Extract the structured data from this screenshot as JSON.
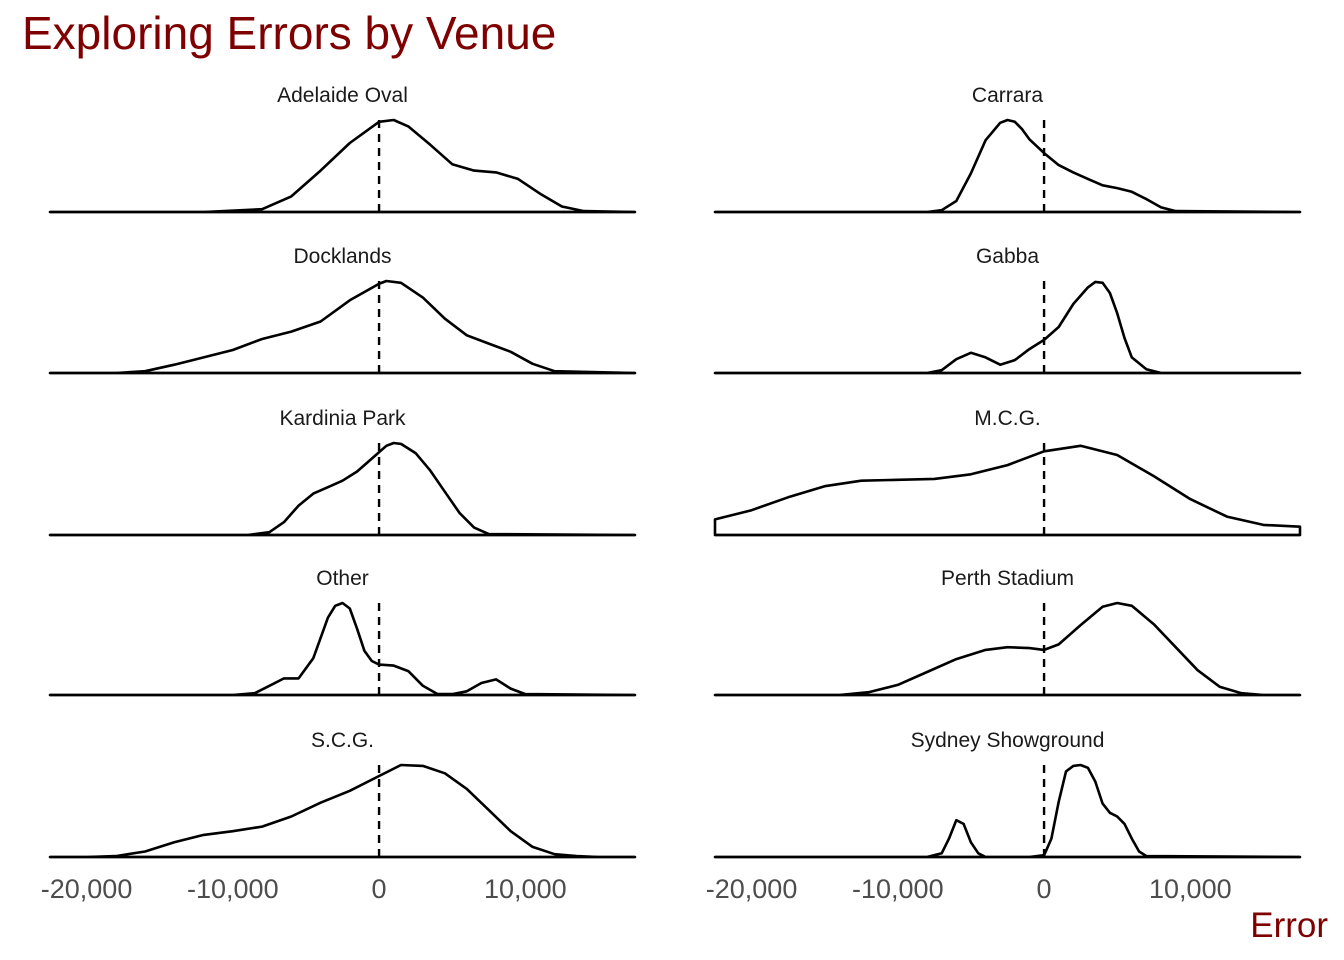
{
  "chart_data": {
    "type": "area",
    "title": "Exploring Errors by Venue",
    "xlabel": "Error",
    "ylabel": "",
    "xlim": [
      -22500,
      17500
    ],
    "x_ticks": [
      -20000,
      -10000,
      0,
      10000
    ],
    "x_tick_labels": [
      "-20,000",
      "-10,000",
      "0",
      "10,000"
    ],
    "reference_line": {
      "x": 0,
      "style": "dashed"
    },
    "grid": false,
    "legend": "none",
    "line_color": "#000000",
    "title_color": "#7f0000",
    "panels": [
      {
        "name": "Adelaide Oval",
        "x": [
          -22500,
          -12000,
          -8000,
          -6000,
          -4000,
          -2000,
          0,
          1000,
          2000,
          3500,
          5000,
          6500,
          8000,
          9500,
          11000,
          12500,
          14000,
          17500
        ],
        "y": [
          0,
          0,
          0.03,
          0.17,
          0.45,
          0.75,
          0.98,
          1.0,
          0.93,
          0.73,
          0.52,
          0.45,
          0.43,
          0.36,
          0.2,
          0.06,
          0.01,
          0
        ]
      },
      {
        "name": "Carrara",
        "x": [
          -22500,
          -8000,
          -7000,
          -6000,
          -5000,
          -4000,
          -3000,
          -2500,
          -2000,
          -1500,
          -1000,
          0,
          1000,
          2000,
          3000,
          4000,
          5000,
          6000,
          7000,
          8000,
          9000,
          17500
        ],
        "y": [
          0,
          0,
          0.02,
          0.12,
          0.42,
          0.78,
          0.97,
          1.0,
          0.98,
          0.9,
          0.79,
          0.64,
          0.51,
          0.43,
          0.36,
          0.29,
          0.26,
          0.22,
          0.14,
          0.05,
          0.01,
          0
        ]
      },
      {
        "name": "Docklands",
        "x": [
          -22500,
          -18000,
          -16000,
          -14000,
          -12000,
          -10000,
          -8000,
          -6000,
          -4000,
          -2000,
          0,
          500,
          1500,
          3000,
          4500,
          6000,
          7500,
          9000,
          10500,
          12000,
          17500
        ],
        "y": [
          0,
          0,
          0.02,
          0.09,
          0.17,
          0.25,
          0.37,
          0.45,
          0.56,
          0.79,
          0.97,
          1.0,
          0.98,
          0.82,
          0.59,
          0.41,
          0.32,
          0.23,
          0.1,
          0.02,
          0
        ]
      },
      {
        "name": "Gabba",
        "x": [
          -22500,
          -8000,
          -7000,
          -6000,
          -5000,
          -4000,
          -3000,
          -2000,
          -1000,
          0,
          1000,
          2000,
          3000,
          3500,
          4000,
          4500,
          5000,
          5500,
          6000,
          7000,
          8000,
          17500
        ],
        "y": [
          0,
          0,
          0.03,
          0.15,
          0.22,
          0.17,
          0.09,
          0.14,
          0.26,
          0.36,
          0.5,
          0.75,
          0.93,
          0.99,
          0.98,
          0.87,
          0.65,
          0.38,
          0.17,
          0.04,
          0,
          0
        ]
      },
      {
        "name": "Kardinia Park",
        "x": [
          -22500,
          -9000,
          -7500,
          -6500,
          -5500,
          -4500,
          -3500,
          -2500,
          -1500,
          -500,
          500,
          1000,
          1500,
          2500,
          3500,
          4500,
          5500,
          6500,
          7500,
          17500
        ],
        "y": [
          0,
          0,
          0.03,
          0.14,
          0.32,
          0.45,
          0.52,
          0.59,
          0.69,
          0.83,
          0.97,
          1.0,
          0.99,
          0.89,
          0.7,
          0.47,
          0.24,
          0.08,
          0.01,
          0
        ]
      },
      {
        "name": "M.C.G.",
        "x": [
          -22500,
          -20000,
          -17500,
          -15000,
          -12500,
          -10000,
          -7500,
          -5000,
          -2500,
          0,
          2500,
          5000,
          7500,
          10000,
          12500,
          15000,
          17500
        ],
        "y": [
          0.17,
          0.27,
          0.41,
          0.53,
          0.59,
          0.6,
          0.61,
          0.66,
          0.76,
          0.91,
          0.97,
          0.87,
          0.64,
          0.39,
          0.2,
          0.11,
          0.09
        ]
      },
      {
        "name": "Other",
        "x": [
          -22500,
          -10000,
          -8500,
          -7500,
          -6500,
          -5500,
          -4500,
          -3500,
          -3000,
          -2500,
          -2000,
          -1500,
          -1000,
          -500,
          0,
          1000,
          2000,
          3000,
          4000,
          5000,
          6000,
          7000,
          8000,
          9000,
          10000,
          17500
        ],
        "y": [
          0,
          0,
          0.02,
          0.1,
          0.18,
          0.18,
          0.4,
          0.84,
          0.97,
          1.0,
          0.94,
          0.72,
          0.48,
          0.37,
          0.33,
          0.32,
          0.26,
          0.1,
          0.01,
          0.01,
          0.04,
          0.13,
          0.17,
          0.07,
          0.01,
          0
        ]
      },
      {
        "name": "Perth Stadium",
        "x": [
          -22500,
          -14000,
          -12000,
          -10000,
          -8000,
          -6000,
          -4000,
          -2500,
          -1000,
          0,
          1000,
          2500,
          4000,
          5000,
          6000,
          7500,
          9000,
          10500,
          12000,
          13500,
          15000,
          17500
        ],
        "y": [
          0,
          0,
          0.03,
          0.11,
          0.25,
          0.39,
          0.49,
          0.52,
          0.51,
          0.49,
          0.55,
          0.76,
          0.96,
          1.0,
          0.97,
          0.77,
          0.52,
          0.27,
          0.09,
          0.02,
          0,
          0
        ]
      },
      {
        "name": "S.C.G.",
        "x": [
          -22500,
          -20000,
          -18000,
          -16000,
          -14000,
          -12000,
          -10000,
          -8000,
          -6000,
          -4000,
          -2000,
          0,
          1500,
          3000,
          4500,
          6000,
          7500,
          9000,
          10500,
          12000,
          13500,
          15000,
          17500
        ],
        "y": [
          0,
          0,
          0.01,
          0.06,
          0.16,
          0.24,
          0.28,
          0.33,
          0.44,
          0.59,
          0.72,
          0.88,
          1.0,
          0.99,
          0.91,
          0.74,
          0.51,
          0.28,
          0.11,
          0.03,
          0.01,
          0,
          0
        ]
      },
      {
        "name": "Sydney Showground",
        "x": [
          -22500,
          -8000,
          -7000,
          -6500,
          -6000,
          -5500,
          -5000,
          -4500,
          -4000,
          -3000,
          -1000,
          0,
          500,
          1000,
          1500,
          2000,
          2500,
          3000,
          3500,
          4000,
          4500,
          5000,
          5500,
          6000,
          6500,
          7000,
          17500
        ],
        "y": [
          0,
          0,
          0.04,
          0.2,
          0.4,
          0.36,
          0.16,
          0.04,
          0,
          0,
          0,
          0.02,
          0.2,
          0.6,
          0.93,
          0.99,
          1.0,
          0.97,
          0.82,
          0.58,
          0.48,
          0.44,
          0.36,
          0.2,
          0.06,
          0.01,
          0
        ]
      }
    ]
  }
}
